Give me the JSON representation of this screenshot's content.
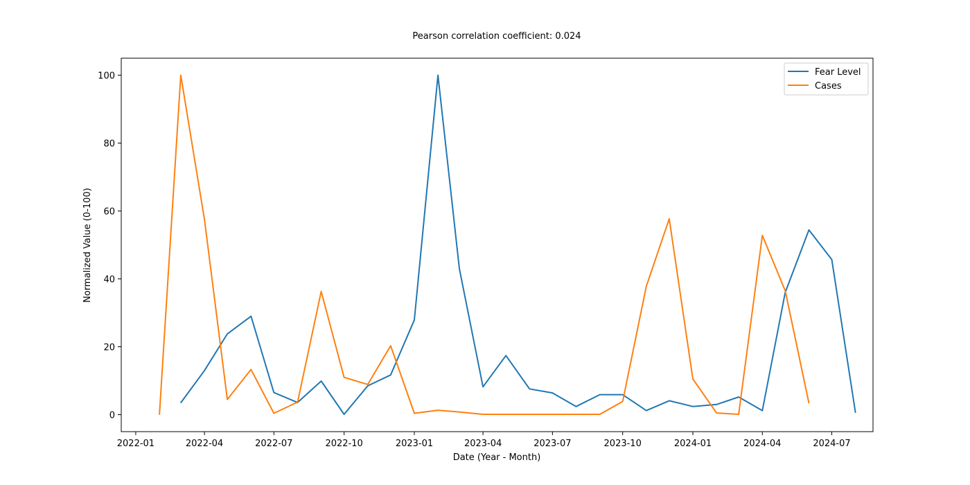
{
  "chart_data": {
    "type": "line",
    "title": "Pearson correlation coefficient: 0.024",
    "xlabel": "Date (Year - Month)",
    "ylabel": "Normalized Value (0-100)",
    "xlim": [
      "2021-12-13",
      "2024-08-24"
    ],
    "ylim": [
      -5,
      105
    ],
    "x_ticks": [
      "2022-01",
      "2022-04",
      "2022-07",
      "2022-10",
      "2023-01",
      "2023-04",
      "2023-07",
      "2023-10",
      "2024-01",
      "2024-04",
      "2024-07"
    ],
    "y_ticks": [
      0,
      20,
      40,
      60,
      80,
      100
    ],
    "legend_position": "top-right",
    "grid": false,
    "series": [
      {
        "name": "Fear Level",
        "color": "#1f77b4",
        "x": [
          "2022-03",
          "2022-04",
          "2022-05",
          "2022-06",
          "2022-07",
          "2022-08",
          "2022-09",
          "2022-10",
          "2022-11",
          "2022-12",
          "2023-01",
          "2023-02",
          "2023-03",
          "2023-04",
          "2023-05",
          "2023-06",
          "2023-07",
          "2023-08",
          "2023-09",
          "2023-10",
          "2023-11",
          "2023-12",
          "2024-01",
          "2024-02",
          "2024-03",
          "2024-04",
          "2024-05",
          "2024-06",
          "2024-07",
          "2024-08"
        ],
        "values": [
          3.5,
          13.0,
          23.8,
          29.0,
          6.5,
          3.6,
          9.9,
          0.1,
          8.5,
          11.7,
          27.9,
          100,
          43.0,
          8.2,
          17.4,
          7.6,
          6.4,
          2.4,
          5.9,
          5.9,
          1.2,
          4.1,
          2.4,
          3.0,
          5.2,
          1.2,
          36.0,
          54.4,
          45.7,
          0.6
        ]
      },
      {
        "name": "Cases",
        "color": "#ff7f0e",
        "x": [
          "2022-02",
          "2022-03",
          "2022-04",
          "2022-05",
          "2022-06",
          "2022-07",
          "2022-08",
          "2022-09",
          "2022-10",
          "2022-11",
          "2022-12",
          "2023-01",
          "2023-02",
          "2023-03",
          "2023-04",
          "2023-05",
          "2023-06",
          "2023-07",
          "2023-08",
          "2023-09",
          "2023-10",
          "2023-11",
          "2023-12",
          "2024-01",
          "2024-02",
          "2024-03",
          "2024-04",
          "2024-05",
          "2024-06"
        ],
        "values": [
          0,
          100,
          57.5,
          4.5,
          13.3,
          0.4,
          3.7,
          36.3,
          11.0,
          8.9,
          20.3,
          0.4,
          1.3,
          0.8,
          0.1,
          0.1,
          0.1,
          0.1,
          0.1,
          0.1,
          3.9,
          37.8,
          57.7,
          10.5,
          0.5,
          0.1,
          52.8,
          36.5,
          3.4
        ]
      }
    ]
  }
}
